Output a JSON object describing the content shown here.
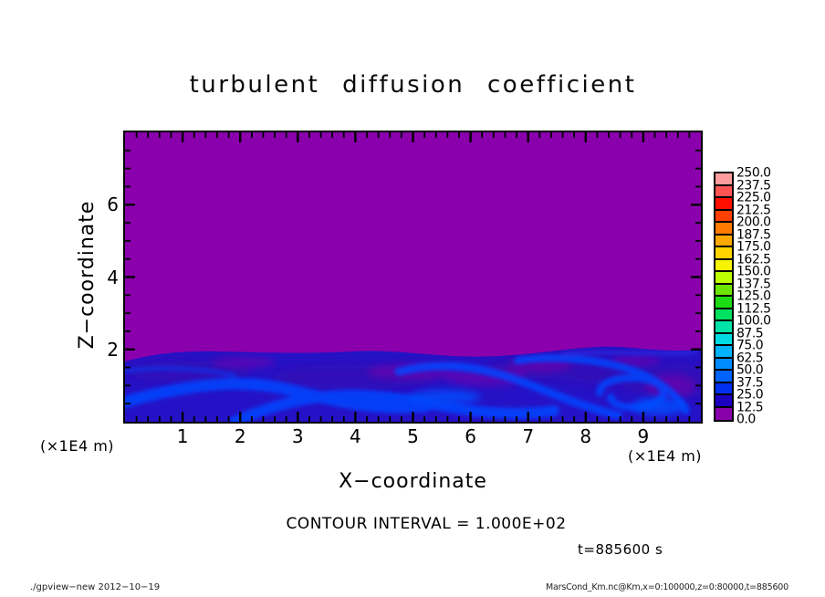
{
  "title": "turbulent diffusion coefficient",
  "axes": {
    "x_label": "X−coordinate",
    "z_label": "Z−coordinate",
    "x_unit_left": "(×1E4 m)",
    "x_unit_right": "(×1E4 m)",
    "x_min": 0,
    "x_max": 10,
    "x_minor_step": 0.2,
    "x_ticks": [
      {
        "v": 1,
        "label": "1"
      },
      {
        "v": 2,
        "label": "2"
      },
      {
        "v": 3,
        "label": "3"
      },
      {
        "v": 4,
        "label": "4"
      },
      {
        "v": 5,
        "label": "5"
      },
      {
        "v": 6,
        "label": "6"
      },
      {
        "v": 7,
        "label": "7"
      },
      {
        "v": 8,
        "label": "8"
      },
      {
        "v": 9,
        "label": "9"
      }
    ],
    "z_min": 0,
    "z_max": 8,
    "z_minor_step": 0.5,
    "z_ticks": [
      {
        "v": 2,
        "label": "2"
      },
      {
        "v": 4,
        "label": "4"
      },
      {
        "v": 6,
        "label": "6"
      }
    ]
  },
  "annotations": {
    "contour_interval": "CONTOUR INTERVAL = 1.000E+02",
    "time": "t=885600 s"
  },
  "footer": {
    "left": "./gpview−new  2012−10−19",
    "right": "MarsCond_Km.nc@Km,x=0:100000,z=0:80000,t=885600"
  },
  "colorbar": {
    "labels": [
      "250.0",
      "237.5",
      "225.0",
      "212.5",
      "200.0",
      "187.5",
      "175.0",
      "162.5",
      "150.0",
      "137.5",
      "125.0",
      "112.5",
      "100.0",
      "87.5",
      "75.0",
      "62.5",
      "50.0",
      "37.5",
      "25.0",
      "12.5",
      "0.0"
    ],
    "colors_top_to_bottom": [
      "#FF9C9C",
      "#FF5454",
      "#FF0E00",
      "#FF4000",
      "#FF7A00",
      "#FFA800",
      "#FFD400",
      "#F8F400",
      "#BCFF00",
      "#6CE600",
      "#1EDC14",
      "#00E161",
      "#00E3A8",
      "#00DCE2",
      "#00B4FF",
      "#008CFF",
      "#0062FF",
      "#0030EE",
      "#1C00C0",
      "#8800AA"
    ]
  },
  "chart_data": {
    "type": "heatmap",
    "title": "turbulent diffusion coefficient",
    "xlabel": "X−coordinate",
    "ylabel": "Z−coordinate",
    "axis_unit": "×1E4 m",
    "x_range_m": [
      0,
      100000
    ],
    "z_range_m": [
      0,
      80000
    ],
    "x_tick_values_1e4m": [
      1,
      2,
      3,
      4,
      5,
      6,
      7,
      8,
      9
    ],
    "z_tick_values_1e4m": [
      2,
      4,
      6
    ],
    "time_s": 885600,
    "contour_interval": 100,
    "levels": [
      0,
      12.5,
      25,
      37.5,
      50,
      62.5,
      75,
      87.5,
      100,
      112.5,
      125,
      137.5,
      150,
      162.5,
      175,
      187.5,
      200,
      212.5,
      225,
      237.5,
      250
    ],
    "colormap_ascending": [
      {
        "from": 0,
        "to": 12.5,
        "color": "#8800AA"
      },
      {
        "from": 12.5,
        "to": 25,
        "color": "#1C00C0"
      },
      {
        "from": 25,
        "to": 37.5,
        "color": "#0030EE"
      },
      {
        "from": 37.5,
        "to": 50,
        "color": "#0062FF"
      },
      {
        "from": 50,
        "to": 62.5,
        "color": "#008CFF"
      },
      {
        "from": 62.5,
        "to": 75,
        "color": "#00B4FF"
      },
      {
        "from": 75,
        "to": 87.5,
        "color": "#00DCE2"
      },
      {
        "from": 87.5,
        "to": 100,
        "color": "#00E3A8"
      },
      {
        "from": 100,
        "to": 112.5,
        "color": "#00E161"
      },
      {
        "from": 112.5,
        "to": 125,
        "color": "#1EDC14"
      },
      {
        "from": 125,
        "to": 137.5,
        "color": "#6CE600"
      },
      {
        "from": 137.5,
        "to": 150,
        "color": "#BCFF00"
      },
      {
        "from": 150,
        "to": 162.5,
        "color": "#F8F400"
      },
      {
        "from": 162.5,
        "to": 175,
        "color": "#FFD400"
      },
      {
        "from": 175,
        "to": 187.5,
        "color": "#FFA800"
      },
      {
        "from": 187.5,
        "to": 200,
        "color": "#FF7A00"
      },
      {
        "from": 200,
        "to": 212.5,
        "color": "#FF4000"
      },
      {
        "from": 212.5,
        "to": 225,
        "color": "#FF0E00"
      },
      {
        "from": 225,
        "to": 237.5,
        "color": "#FF5454"
      },
      {
        "from": 237.5,
        "to": 250,
        "color": "#FF9C9C"
      }
    ],
    "field_summary": {
      "upper_region": {
        "z_above_m": 20000,
        "value_range": [
          0,
          12.5
        ],
        "appearance": "uniform purple fill"
      },
      "boundary_layer": {
        "z_below_m": 20000,
        "value_range": [
          12.5,
          75
        ],
        "appearance": "turbulent blue swirls with purple wisps near the top interface"
      }
    },
    "approx_values_grid": {
      "x_1e4m": [
        0.5,
        1.5,
        2.5,
        3.5,
        4.5,
        5.5,
        6.5,
        7.5,
        8.5,
        9.5
      ],
      "z_1e4m": [
        0.25,
        0.75,
        1.5
      ],
      "values": [
        [
          44,
          38,
          31,
          44,
          38,
          44,
          31,
          38,
          44,
          38
        ],
        [
          38,
          31,
          44,
          38,
          31,
          28,
          41,
          34,
          38,
          31
        ],
        [
          25,
          31,
          28,
          25,
          19,
          22,
          34,
          28,
          31,
          25
        ]
      ]
    }
  }
}
